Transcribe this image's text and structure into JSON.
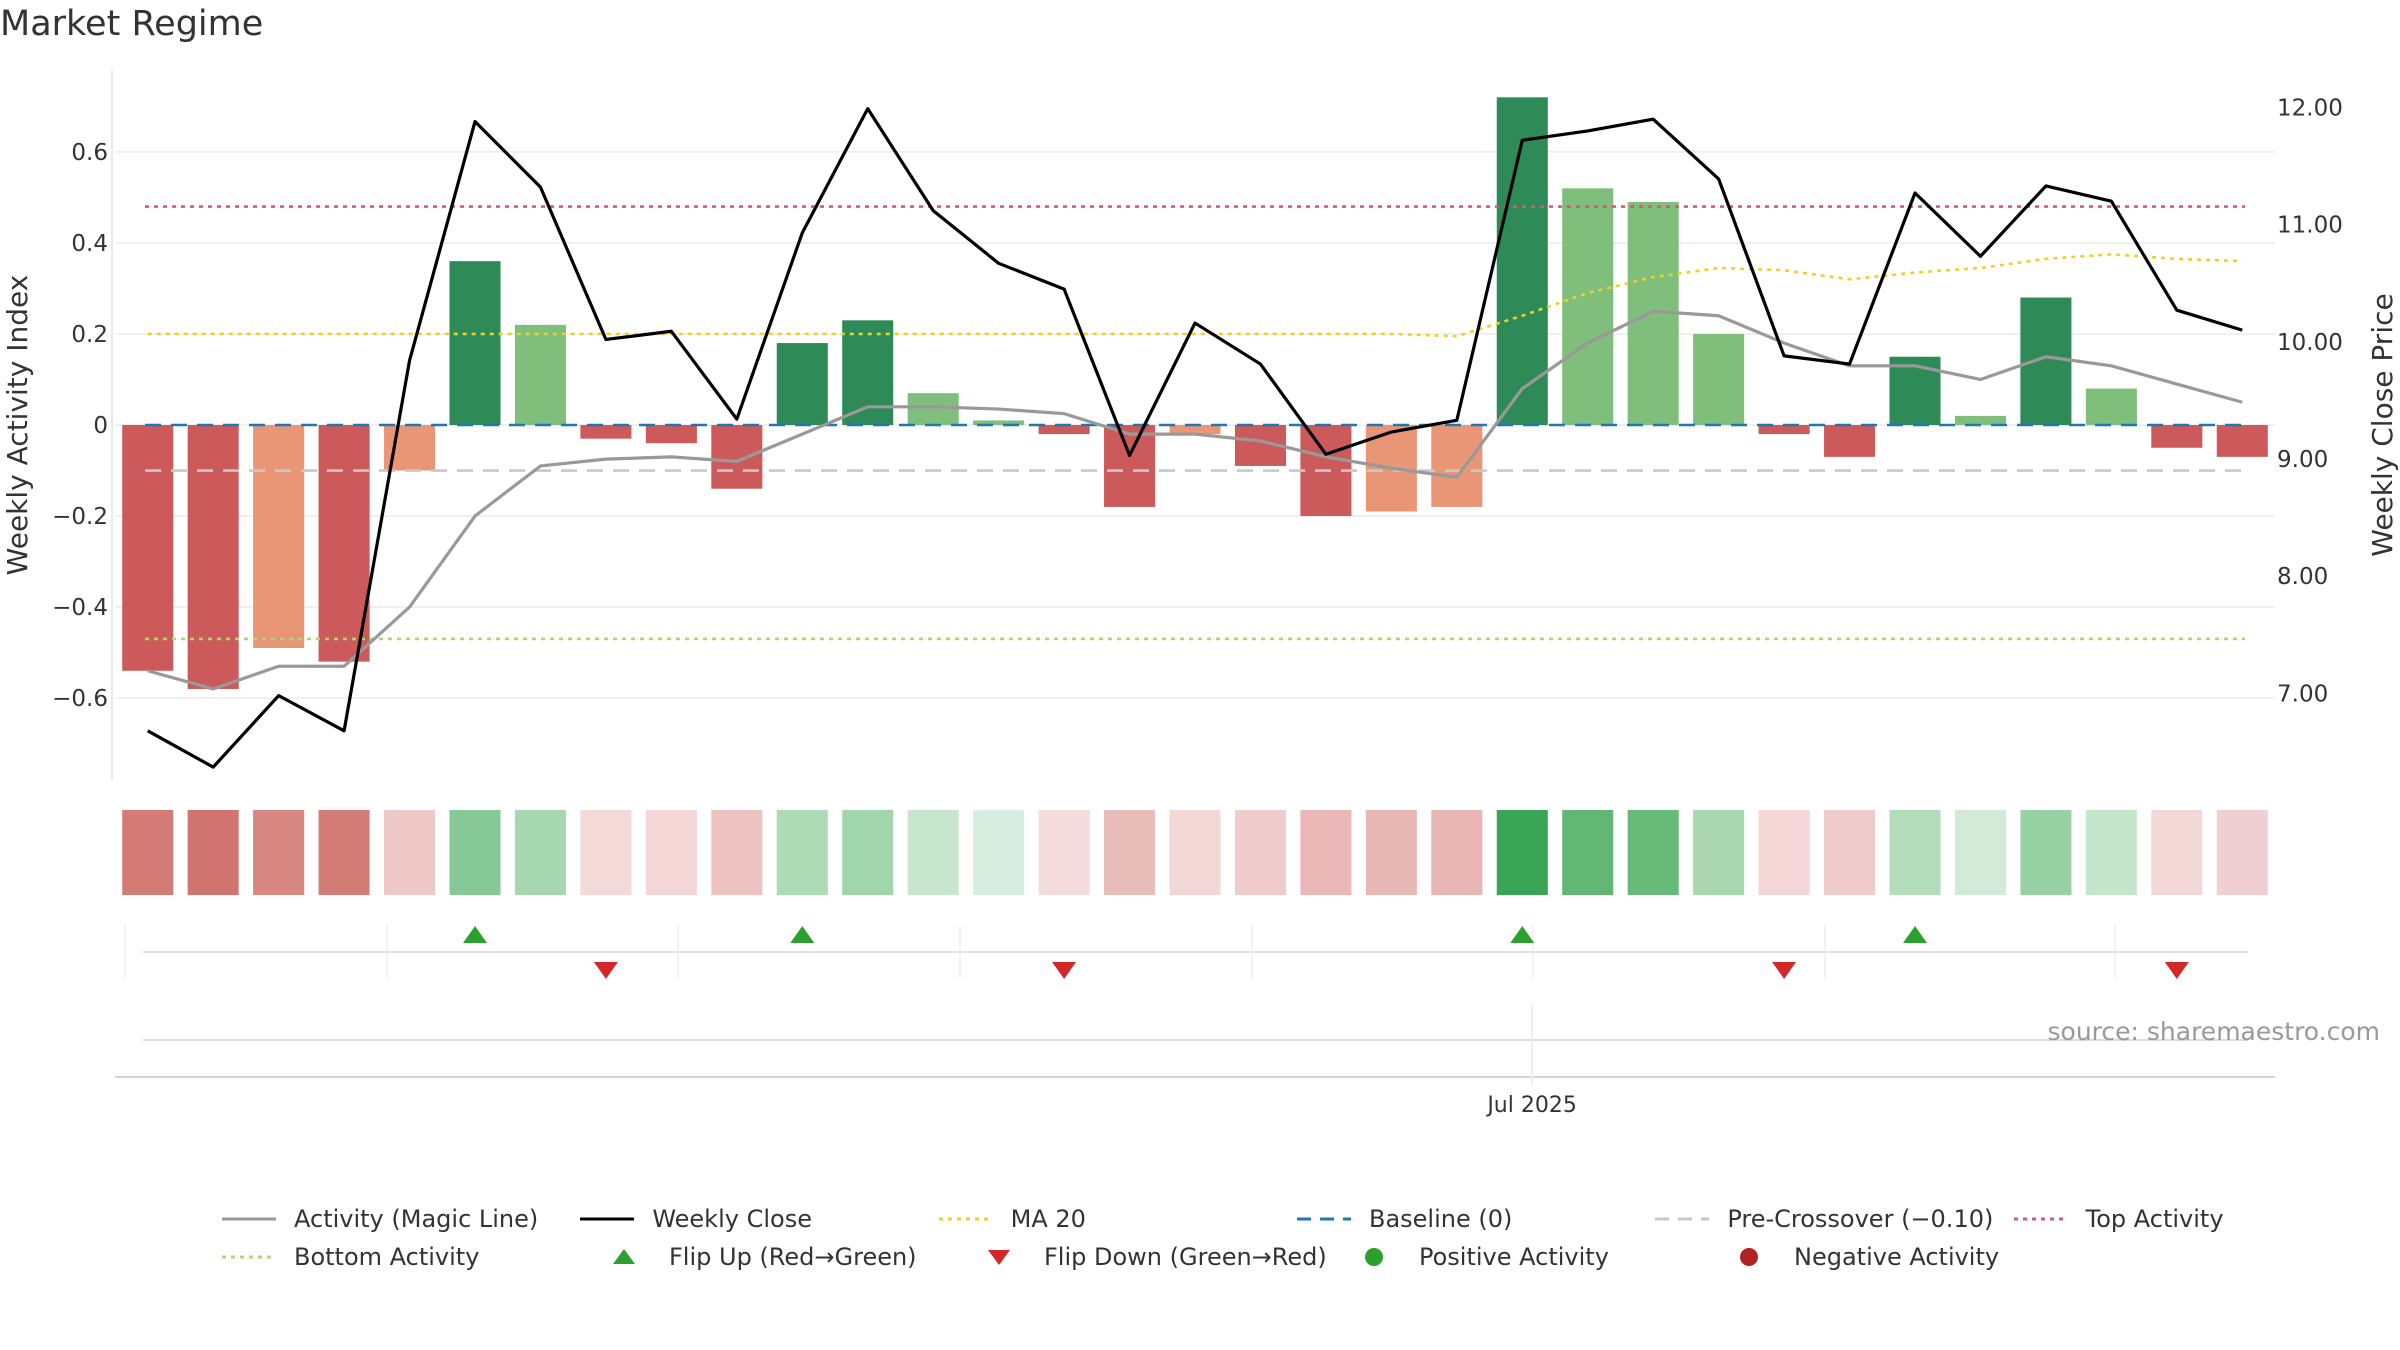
{
  "title": "Market Regime",
  "source_note": "source: sharemaestro.com",
  "chart_data": {
    "type": "bar",
    "y_left": {
      "label": "Weekly Activity Index",
      "range": [
        -0.78,
        0.78
      ],
      "ticks": [
        -0.6,
        -0.4,
        -0.2,
        0,
        0.2,
        0.4,
        0.6
      ],
      "tick_labels": [
        "−0.6",
        "−0.4",
        "−0.2",
        "0",
        "0.2",
        "0.4",
        "0.6"
      ]
    },
    "y_right": {
      "label": "Weekly Close Price",
      "range": [
        6.26,
        12.32
      ],
      "ticks": [
        7,
        8,
        9,
        10,
        11,
        12
      ],
      "tick_labels": [
        "7.00",
        "8.00",
        "9.00",
        "10.00",
        "11.00",
        "12.00"
      ]
    },
    "x_tick": {
      "label": "Jul 2025",
      "week_index": 21.15
    },
    "grid": true,
    "legend_position": "bottom",
    "weeks": 33,
    "activity": [
      -0.54,
      -0.58,
      -0.49,
      -0.52,
      -0.1,
      0.36,
      0.22,
      -0.03,
      -0.04,
      -0.14,
      0.18,
      0.23,
      0.07,
      0.01,
      -0.02,
      -0.18,
      -0.02,
      -0.09,
      -0.2,
      -0.19,
      -0.18,
      0.72,
      0.52,
      0.49,
      0.2,
      -0.02,
      -0.07,
      0.15,
      0.02,
      0.28,
      0.08,
      -0.05,
      -0.07
    ],
    "bar_colors": [
      "#cd5a5a",
      "#cd5a5a",
      "#e99676",
      "#cd5a5a",
      "#e99676",
      "#2e8b57",
      "#7fbf7b",
      "#cd5a5a",
      "#cd5a5a",
      "#cd5a5a",
      "#2e8b57",
      "#2e8b57",
      "#7fbf7b",
      "#7fbf7b",
      "#cd5a5a",
      "#cd5a5a",
      "#e99676",
      "#cd5a5a",
      "#cd5a5a",
      "#e99676",
      "#e99676",
      "#2e8b57",
      "#7fbf7b",
      "#7fbf7b",
      "#7fbf7b",
      "#cd5a5a",
      "#cd5a5a",
      "#2e8b57",
      "#7fbf7b",
      "#2e8b57",
      "#7fbf7b",
      "#cd5a5a",
      "#cd5a5a"
    ],
    "heat_colors": [
      "#d47b76",
      "#d1736f",
      "#d78680",
      "#d37c76",
      "#eec8c6",
      "#87c996",
      "#a7d7b0",
      "#f3d9d7",
      "#f3d6d5",
      "#ecc3c1",
      "#acdbb5",
      "#a1d6ac",
      "#c7e6cd",
      "#d6ede0",
      "#f4dcdc",
      "#e7bcb9",
      "#f3d7d7",
      "#efcbcb",
      "#e9b8b7",
      "#e8b8b6",
      "#e8b7b5",
      "#3ba557",
      "#62b774",
      "#68ba78",
      "#a8d7b0",
      "#f3d6d5",
      "#efcbcb",
      "#b3dcba",
      "#d2ead7",
      "#98d1a4",
      "#c6e6cc",
      "#f4d8d8",
      "#efcfd1"
    ],
    "series": [
      {
        "name": "Weekly Close",
        "axis": "right",
        "color": "#000000",
        "values": [
          6.68,
          6.37,
          6.98,
          6.68,
          9.84,
          11.88,
          11.32,
          10.02,
          10.09,
          9.34,
          10.93,
          11.99,
          11.12,
          10.67,
          10.45,
          9.03,
          10.16,
          9.81,
          9.04,
          9.23,
          9.33,
          11.72,
          11.8,
          11.9,
          11.39,
          9.88,
          9.81,
          11.27,
          10.73,
          11.33,
          11.2,
          10.27,
          10.1
        ]
      },
      {
        "name": "Activity (Magic Line)",
        "axis": "left",
        "color": "#999999",
        "values": [
          -0.54,
          -0.58,
          -0.53,
          -0.53,
          -0.4,
          -0.2,
          -0.09,
          -0.075,
          -0.07,
          -0.08,
          -0.02,
          0.04,
          0.04,
          0.035,
          0.025,
          -0.02,
          -0.02,
          -0.035,
          -0.07,
          -0.095,
          -0.115,
          0.08,
          0.18,
          0.25,
          0.24,
          0.18,
          0.13,
          0.13,
          0.1,
          0.15,
          0.13,
          0.09,
          0.05
        ]
      },
      {
        "name": "MA 20",
        "axis": "left",
        "color": "#e8d32a",
        "values": [
          0.2,
          0.2,
          0.2,
          0.2,
          0.2,
          0.2,
          0.2,
          0.2,
          0.2,
          0.2,
          0.2,
          0.2,
          0.2,
          0.2,
          0.2,
          0.2,
          0.2,
          0.2,
          0.2,
          0.2,
          0.195,
          0.24,
          0.29,
          0.325,
          0.345,
          0.34,
          0.32,
          0.335,
          0.345,
          0.365,
          0.375,
          0.365,
          0.36
        ]
      }
    ],
    "reference_lines": [
      {
        "name": "Baseline (0)",
        "value": 0,
        "color": "#1f77b4",
        "style": "dashed"
      },
      {
        "name": "Pre-Crossover (−0.10)",
        "value": -0.1,
        "color": "#c8c8c8",
        "style": "dashed"
      },
      {
        "name": "Top Activity",
        "value": 0.48,
        "color": "#d35a7a",
        "style": "dotted"
      },
      {
        "name": "Bottom Activity",
        "value": -0.47,
        "color": "#a9d86e",
        "style": "dotted"
      }
    ],
    "flip_up_weeks": [
      5,
      10,
      21,
      27
    ],
    "flip_down_weeks": [
      7,
      14,
      25,
      31
    ],
    "flip_up_color": "#2ca02c",
    "flip_down_color": "#d62728",
    "positive_color": "#2ca02c",
    "negative_color": "#b22222"
  },
  "legend": [
    {
      "label": "Activity (Magic Line)",
      "symbol": "line",
      "color": "#999999"
    },
    {
      "label": "Weekly Close",
      "symbol": "line",
      "color": "#000000"
    },
    {
      "label": "MA 20",
      "symbol": "dotted",
      "color": "#e8d32a"
    },
    {
      "label": "Baseline (0)",
      "symbol": "dashed",
      "color": "#1f77b4"
    },
    {
      "label": "Pre-Crossover (−0.10)",
      "symbol": "dashed",
      "color": "#c8c8c8"
    },
    {
      "label": "Top Activity",
      "symbol": "dotted",
      "color": "#d35a7a"
    },
    {
      "label": "Bottom Activity",
      "symbol": "dotted",
      "color": "#a9d86e"
    },
    {
      "label": "Flip Up (Red→Green)",
      "symbol": "triangle-up",
      "color": "#2ca02c"
    },
    {
      "label": "Flip Down (Green→Red)",
      "symbol": "triangle-down",
      "color": "#d62728"
    },
    {
      "label": "Positive Activity",
      "symbol": "circle",
      "color": "#2ca02c"
    },
    {
      "label": "Negative Activity",
      "symbol": "circle",
      "color": "#b22222"
    }
  ]
}
